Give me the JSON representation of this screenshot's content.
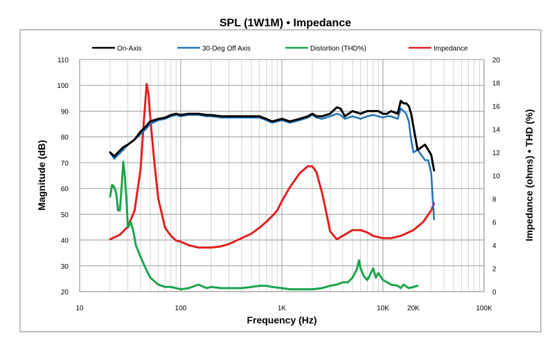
{
  "chart_data": {
    "type": "line",
    "title": "SPL (1W1M) • Impedance",
    "xlabel": "Frequency (Hz)",
    "ylabel": "Magnitude (dB)",
    "y2label": "Impedance (ohms) • THD (%)",
    "xscale": "log",
    "xlim": [
      10,
      100000
    ],
    "ylim": [
      20,
      110
    ],
    "y2lim": [
      0,
      20
    ],
    "grid": true,
    "legend_position": "top",
    "x_ticks": [
      {
        "value": 10,
        "label": "10"
      },
      {
        "value": 100,
        "label": "100"
      },
      {
        "value": 1000,
        "label": "1K"
      },
      {
        "value": 10000,
        "label": "10K"
      },
      {
        "value": 20000,
        "label": "20K"
      },
      {
        "value": 100000,
        "label": "100K"
      }
    ],
    "y_ticks": [
      20,
      30,
      40,
      50,
      60,
      70,
      80,
      90,
      100,
      110
    ],
    "y2_ticks": [
      0,
      2,
      4,
      6,
      8,
      10,
      12,
      14,
      16,
      18,
      20
    ],
    "series": [
      {
        "name": "On-Axis",
        "color": "#000000",
        "axis": "left",
        "x": [
          20,
          22,
          24,
          27,
          30,
          35,
          40,
          45,
          50,
          60,
          70,
          80,
          90,
          100,
          120,
          150,
          180,
          200,
          250,
          300,
          400,
          500,
          600,
          700,
          800,
          900,
          1000,
          1200,
          1500,
          1800,
          2000,
          2200,
          2500,
          3000,
          3500,
          3800,
          4200,
          5000,
          6000,
          7000,
          8000,
          9000,
          10000,
          11000,
          12000,
          14000,
          15000,
          16000,
          17000,
          18000,
          19000,
          20000,
          22000,
          24000,
          26000,
          28000,
          30000,
          32000
        ],
        "y": [
          74,
          72.5,
          74,
          76,
          77,
          79,
          82,
          84,
          86,
          87,
          87.5,
          88.5,
          89,
          88.5,
          89,
          89,
          88.5,
          88.5,
          88,
          88,
          88,
          88,
          88,
          87,
          86,
          86.5,
          87,
          86,
          87,
          88,
          89,
          88,
          88,
          89,
          91.5,
          91,
          88,
          90,
          89,
          90,
          90,
          90,
          89,
          89,
          90,
          89,
          94,
          93,
          93,
          92,
          89,
          84,
          75,
          76,
          77,
          75,
          73,
          67
        ]
      },
      {
        "name": "30-Deg Off Axis",
        "color": "#1f73b7",
        "axis": "left",
        "x": [
          20,
          22,
          24,
          27,
          30,
          35,
          40,
          45,
          50,
          60,
          70,
          80,
          90,
          100,
          120,
          150,
          180,
          200,
          250,
          300,
          400,
          500,
          600,
          700,
          800,
          900,
          1000,
          1200,
          1500,
          1800,
          2000,
          2200,
          2500,
          3000,
          3500,
          3800,
          4200,
          5000,
          6000,
          7000,
          8000,
          9000,
          10000,
          11000,
          12000,
          14000,
          15000,
          16000,
          17000,
          18000,
          19000,
          20000,
          22000,
          24000,
          26000,
          28000,
          30000,
          32000
        ],
        "y": [
          74,
          71.5,
          73,
          75,
          77,
          79,
          81,
          83,
          85,
          86.5,
          87,
          88,
          88.5,
          88,
          88.5,
          88.5,
          88,
          88,
          87.5,
          87.5,
          87.5,
          87.5,
          87.5,
          86.5,
          85.5,
          86,
          86.5,
          85.5,
          86.5,
          87.5,
          88.5,
          87.5,
          87,
          88,
          89,
          88.5,
          87,
          88,
          87,
          88,
          88.5,
          88,
          87.5,
          88,
          88,
          87,
          91,
          90,
          89,
          86,
          79,
          74,
          75,
          73,
          71,
          71,
          66,
          48
        ]
      },
      {
        "name": "Distortion (THD%)",
        "color": "#1aa34a",
        "axis": "right",
        "x": [
          20,
          21,
          22,
          23,
          24,
          25,
          26,
          27,
          28,
          29,
          30,
          32,
          34,
          36,
          40,
          45,
          50,
          60,
          70,
          80,
          90,
          100,
          120,
          150,
          180,
          200,
          250,
          300,
          400,
          500,
          600,
          700,
          800,
          1000,
          1200,
          1500,
          2000,
          2500,
          3000,
          3500,
          4000,
          4500,
          5000,
          5500,
          5800,
          6000,
          6500,
          7000,
          7500,
          8000,
          8500,
          9000,
          10000,
          11000,
          12000,
          14000,
          15000,
          16000,
          18000,
          20000,
          22000
        ],
        "y": [
          8.2,
          9.2,
          9,
          8.5,
          7,
          7,
          9,
          11.2,
          10,
          8,
          5.5,
          6,
          5.2,
          4,
          3,
          2,
          1.2,
          0.6,
          0.4,
          0.4,
          0.3,
          0.2,
          0.3,
          0.6,
          0.3,
          0.4,
          0.3,
          0.3,
          0.3,
          0.4,
          0.5,
          0.5,
          0.4,
          0.3,
          0.2,
          0.2,
          0.2,
          0.3,
          0.5,
          0.6,
          0.8,
          0.8,
          1.2,
          1.9,
          2.7,
          2,
          1.3,
          1,
          1.5,
          2,
          1.2,
          1.6,
          1,
          0.8,
          0.6,
          0.5,
          0.3,
          0.6,
          0.3,
          0.4,
          0.5
        ]
      },
      {
        "name": "Impedance",
        "color": "#e02020",
        "axis": "right",
        "x": [
          20,
          25,
          30,
          35,
          40,
          43,
          46,
          48,
          50,
          55,
          60,
          70,
          80,
          90,
          100,
          120,
          150,
          200,
          250,
          300,
          400,
          500,
          600,
          700,
          800,
          900,
          1000,
          1200,
          1500,
          1800,
          2000,
          2200,
          2500,
          2800,
          3000,
          3500,
          4000,
          5000,
          6000,
          7000,
          8000,
          10000,
          12000,
          15000,
          20000,
          25000,
          30000,
          32000
        ],
        "y": [
          4.5,
          4.9,
          5.6,
          7,
          10.5,
          14.5,
          17.9,
          17,
          15,
          11,
          8,
          5.5,
          4.8,
          4.4,
          4.3,
          4,
          3.8,
          3.8,
          3.9,
          4.1,
          4.6,
          5,
          5.5,
          6,
          6.5,
          7,
          7.8,
          9,
          10.2,
          10.8,
          10.8,
          10.3,
          8.5,
          6.5,
          5.2,
          4.5,
          4.8,
          5.3,
          5.3,
          5.1,
          4.8,
          4.6,
          4.6,
          4.8,
          5.3,
          6,
          7,
          7.6
        ]
      }
    ]
  }
}
